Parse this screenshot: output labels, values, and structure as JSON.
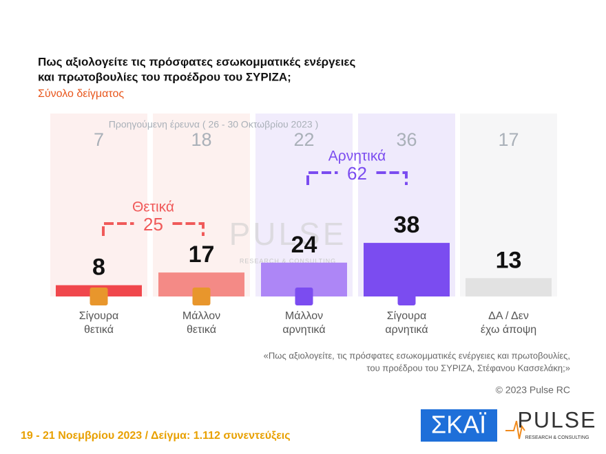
{
  "header": {
    "title": [
      "Πως αξιολογείτε τις πρόσφατες εσωκομματικές ενέργειες",
      "και πρωτοβουλίες του προέδρου του ΣΥΡΙΖΑ;"
    ],
    "subtitle": "Σύνολο δείγματος"
  },
  "chart_data": {
    "type": "bar",
    "categories": [
      [
        "Σίγουρα",
        "θετικά"
      ],
      [
        "Μάλλον",
        "θετικά"
      ],
      [
        "Μάλλον",
        "αρνητικά"
      ],
      [
        "Σίγουρα",
        "αρνητικά"
      ],
      [
        "ΔΑ / Δεν",
        "έχω άποψη"
      ]
    ],
    "values": [
      8,
      17,
      24,
      38,
      13
    ],
    "colors": [
      "#f0474c",
      "#f48a86",
      "#ad86f6",
      "#7b4cf0",
      "#e2e2e2"
    ],
    "panel_colors": [
      "#fdf0ef",
      "#fdf1ef",
      "#f1ecfc",
      "#efeafc",
      "#f6f6f7"
    ],
    "previous": {
      "label": "Προηγούμενη έρευνα  ( 26 - 30 Οκτωβρίου 2023 )",
      "values": [
        7,
        18,
        22,
        36,
        17
      ]
    },
    "groups": [
      {
        "name": "Θετικά",
        "value": 25,
        "color": "#f05a5a"
      },
      {
        "name": "Αρνητικά",
        "value": 62,
        "color": "#7b4cf0"
      }
    ]
  },
  "quote": [
    "«Πως αξιολογείτε, τις πρόσφατες εσωκομματικές ενέργειες και πρωτοβουλίες,",
    "του προέδρου του ΣΥΡΙΖΑ, Στέφανου Κασσελάκη;»"
  ],
  "copyright": "© 2023 Pulse RC",
  "footer": "19 - 21  Νοεμβρίου  2023  /  Δείγμα:  1.112 συνεντεύξεις",
  "watermark": {
    "name": "PULSE",
    "tagline": "RESEARCH & CONSULTING"
  },
  "logos": {
    "skai": "ΣΚΑΪ",
    "pulse": "PULSE",
    "pulse_tagline": "RESEARCH & CONSULTING"
  }
}
